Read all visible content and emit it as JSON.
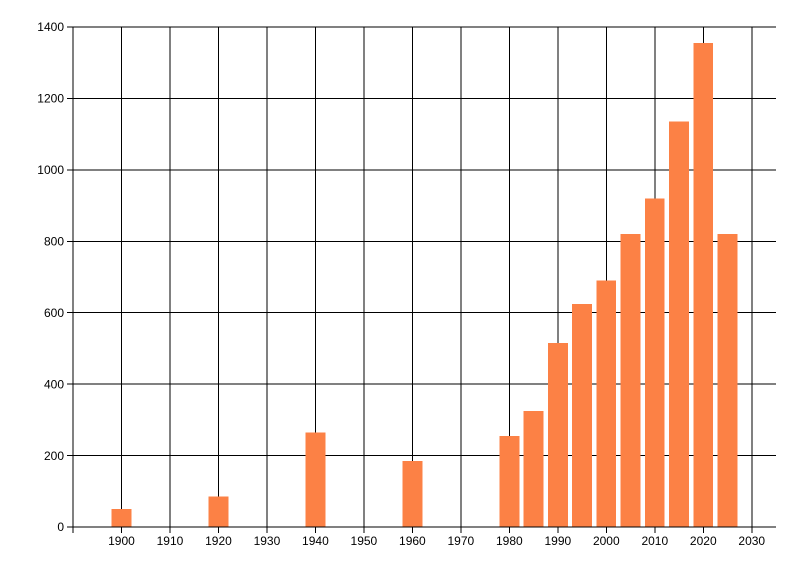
{
  "chart_data": {
    "type": "bar",
    "x": [
      1900,
      1920,
      1940,
      1960,
      1980,
      1985,
      1990,
      1995,
      2000,
      2005,
      2010,
      2015,
      2020,
      2025
    ],
    "values": [
      50,
      85,
      265,
      185,
      255,
      325,
      515,
      625,
      690,
      820,
      920,
      1135,
      1355,
      820
    ],
    "x_ticks": [
      1900,
      1910,
      1920,
      1930,
      1940,
      1950,
      1960,
      1970,
      1980,
      1990,
      2000,
      2010,
      2020,
      2030
    ],
    "y_ticks": [
      0,
      200,
      400,
      600,
      800,
      1000,
      1200,
      1400
    ],
    "xlim": [
      1890,
      2035
    ],
    "ylim": [
      0,
      1400
    ],
    "grid": true,
    "legend": false,
    "bar_width_years": 4.1,
    "bar_color": "#FC8145",
    "grid_color": "#000000",
    "axis_color": "#000000",
    "text_color": "#000000",
    "background_color": "#FFFFFF"
  }
}
